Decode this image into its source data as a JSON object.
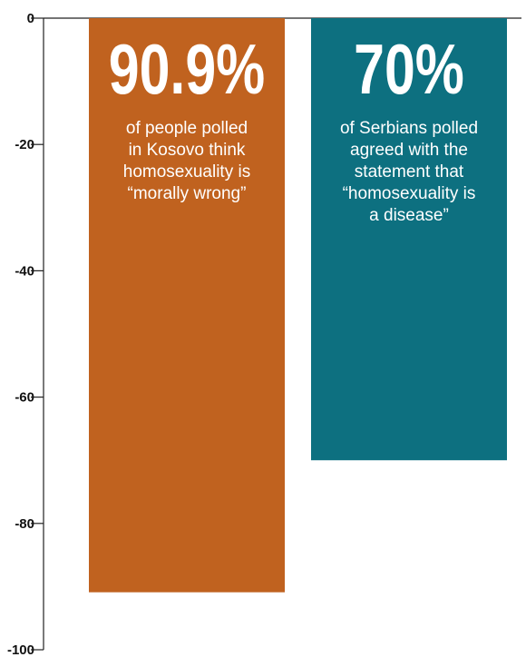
{
  "chart_data": {
    "type": "bar",
    "categories": [
      "Kosovo",
      "Serbia"
    ],
    "values": [
      -90.9,
      -70
    ],
    "ylim": [
      -100,
      0
    ],
    "yticks": [
      0,
      -20,
      -40,
      -60,
      -80,
      -100
    ],
    "ytick_labels": [
      "0",
      "-20",
      "-40",
      "-60",
      "-80",
      "-100"
    ],
    "grid": false,
    "colors": [
      "#c0621f",
      "#0d7080"
    ],
    "annotations": [
      {
        "headline": "90.9%",
        "lines": [
          "of people polled",
          "in Kosovo think",
          "homosexuality is",
          "“morally wrong”"
        ]
      },
      {
        "headline": "70%",
        "lines": [
          "of Serbians polled",
          "agreed with the",
          "statement that",
          "“homosexuality is",
          "a disease”"
        ]
      }
    ]
  }
}
